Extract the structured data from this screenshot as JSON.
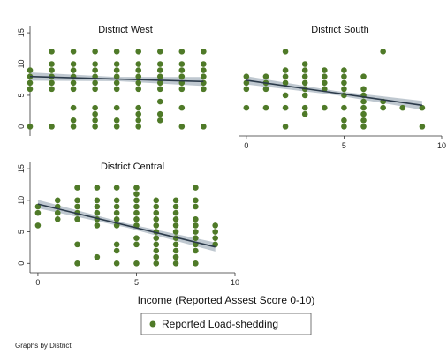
{
  "chart_data": {
    "type": "scatter",
    "xlabel": "Income (Reported Assest Score 0-10)",
    "legend": {
      "label": "Reported Load-shedding",
      "placement": "bottom-center"
    },
    "note": "Graphs by District",
    "colors": {
      "marker": "#4f7a28",
      "fit_line": "#2b3a4a",
      "ci_band": "#b4bec8"
    },
    "panels": [
      {
        "title": "District  West",
        "xlim": [
          0,
          8.8
        ],
        "ylim": [
          -1.5,
          16
        ],
        "yticks": [
          0,
          5,
          10,
          15
        ],
        "xticks": [],
        "fit": {
          "x": [
            0,
            8
          ],
          "y": [
            8.0,
            7.2
          ]
        },
        "points": [
          [
            0,
            0
          ],
          [
            0,
            6
          ],
          [
            0,
            7
          ],
          [
            0,
            8
          ],
          [
            0,
            9
          ],
          [
            1,
            0
          ],
          [
            1,
            6
          ],
          [
            1,
            7
          ],
          [
            1,
            8
          ],
          [
            1,
            9
          ],
          [
            1,
            10
          ],
          [
            1,
            12
          ],
          [
            2,
            0
          ],
          [
            2,
            1
          ],
          [
            2,
            3
          ],
          [
            2,
            6
          ],
          [
            2,
            7
          ],
          [
            2,
            8
          ],
          [
            2,
            9
          ],
          [
            2,
            10
          ],
          [
            2,
            12
          ],
          [
            3,
            0
          ],
          [
            3,
            1
          ],
          [
            3,
            2
          ],
          [
            3,
            3
          ],
          [
            3,
            6
          ],
          [
            3,
            7
          ],
          [
            3,
            8
          ],
          [
            3,
            9
          ],
          [
            3,
            10
          ],
          [
            3,
            12
          ],
          [
            4,
            0
          ],
          [
            4,
            1
          ],
          [
            4,
            3
          ],
          [
            4,
            6
          ],
          [
            4,
            7
          ],
          [
            4,
            8
          ],
          [
            4,
            9
          ],
          [
            4,
            10
          ],
          [
            4,
            12
          ],
          [
            5,
            0
          ],
          [
            5,
            1
          ],
          [
            5,
            2
          ],
          [
            5,
            3
          ],
          [
            5,
            6
          ],
          [
            5,
            7
          ],
          [
            5,
            8
          ],
          [
            5,
            9
          ],
          [
            5,
            10
          ],
          [
            5,
            12
          ],
          [
            6,
            1
          ],
          [
            6,
            2
          ],
          [
            6,
            4
          ],
          [
            6,
            6
          ],
          [
            6,
            7
          ],
          [
            6,
            8
          ],
          [
            6,
            9
          ],
          [
            6,
            10
          ],
          [
            6,
            12
          ],
          [
            7,
            0
          ],
          [
            7,
            3
          ],
          [
            7,
            6
          ],
          [
            7,
            7
          ],
          [
            7,
            8
          ],
          [
            7,
            9
          ],
          [
            7,
            10
          ],
          [
            7,
            12
          ],
          [
            8,
            0
          ],
          [
            8,
            6
          ],
          [
            8,
            7
          ],
          [
            8,
            8
          ],
          [
            8,
            9
          ],
          [
            8,
            10
          ],
          [
            8,
            12
          ]
        ]
      },
      {
        "title": "District South",
        "xlim": [
          -0.4,
          10
        ],
        "ylim": [
          -1.5,
          16
        ],
        "yticks": [],
        "xticks": [
          0,
          5,
          10
        ],
        "fit": {
          "x": [
            0,
            9
          ],
          "y": [
            7.4,
            3.4
          ]
        },
        "points": [
          [
            0,
            3
          ],
          [
            0,
            6
          ],
          [
            0,
            7
          ],
          [
            0,
            8
          ],
          [
            1,
            3
          ],
          [
            1,
            6
          ],
          [
            1,
            7
          ],
          [
            1,
            8
          ],
          [
            2,
            0
          ],
          [
            2,
            3
          ],
          [
            2,
            5
          ],
          [
            2,
            7
          ],
          [
            2,
            8
          ],
          [
            2,
            9
          ],
          [
            2,
            12
          ],
          [
            3,
            2
          ],
          [
            3,
            3
          ],
          [
            3,
            5
          ],
          [
            3,
            6
          ],
          [
            3,
            7
          ],
          [
            3,
            8
          ],
          [
            3,
            9
          ],
          [
            3,
            10
          ],
          [
            4,
            3
          ],
          [
            4,
            6
          ],
          [
            4,
            7
          ],
          [
            4,
            8
          ],
          [
            4,
            9
          ],
          [
            5,
            0
          ],
          [
            5,
            1
          ],
          [
            5,
            3
          ],
          [
            5,
            5
          ],
          [
            5,
            6
          ],
          [
            5,
            7
          ],
          [
            5,
            8
          ],
          [
            5,
            9
          ],
          [
            6,
            0
          ],
          [
            6,
            1
          ],
          [
            6,
            2
          ],
          [
            6,
            3
          ],
          [
            6,
            4
          ],
          [
            6,
            5
          ],
          [
            6,
            6
          ],
          [
            6,
            8
          ],
          [
            7,
            3
          ],
          [
            7,
            4
          ],
          [
            7,
            12
          ],
          [
            8,
            3
          ],
          [
            9,
            0
          ],
          [
            9,
            3
          ]
        ]
      },
      {
        "title": "District Central",
        "xlim": [
          -0.4,
          10
        ],
        "ylim": [
          -1.5,
          16
        ],
        "yticks": [
          0,
          5,
          10,
          15
        ],
        "xticks": [
          0,
          5,
          10
        ],
        "fit": {
          "x": [
            0,
            9
          ],
          "y": [
            9.4,
            2.6
          ]
        },
        "points": [
          [
            0,
            6
          ],
          [
            0,
            8
          ],
          [
            0,
            9
          ],
          [
            1,
            7
          ],
          [
            1,
            8
          ],
          [
            1,
            9
          ],
          [
            1,
            10
          ],
          [
            2,
            0
          ],
          [
            2,
            3
          ],
          [
            2,
            7
          ],
          [
            2,
            8
          ],
          [
            2,
            9
          ],
          [
            2,
            10
          ],
          [
            2,
            12
          ],
          [
            3,
            1
          ],
          [
            3,
            6
          ],
          [
            3,
            7
          ],
          [
            3,
            8
          ],
          [
            3,
            9
          ],
          [
            3,
            10
          ],
          [
            3,
            12
          ],
          [
            4,
            0
          ],
          [
            4,
            2
          ],
          [
            4,
            3
          ],
          [
            4,
            6
          ],
          [
            4,
            7
          ],
          [
            4,
            8
          ],
          [
            4,
            9
          ],
          [
            4,
            10
          ],
          [
            4,
            12
          ],
          [
            5,
            0
          ],
          [
            5,
            3
          ],
          [
            5,
            4
          ],
          [
            5,
            6
          ],
          [
            5,
            7
          ],
          [
            5,
            8
          ],
          [
            5,
            9
          ],
          [
            5,
            10
          ],
          [
            5,
            11
          ],
          [
            5,
            12
          ],
          [
            6,
            0
          ],
          [
            6,
            1
          ],
          [
            6,
            2
          ],
          [
            6,
            3
          ],
          [
            6,
            4
          ],
          [
            6,
            5
          ],
          [
            6,
            6
          ],
          [
            6,
            7
          ],
          [
            6,
            8
          ],
          [
            6,
            9
          ],
          [
            6,
            10
          ],
          [
            7,
            0
          ],
          [
            7,
            1
          ],
          [
            7,
            2
          ],
          [
            7,
            3
          ],
          [
            7,
            4
          ],
          [
            7,
            5
          ],
          [
            7,
            6
          ],
          [
            7,
            7
          ],
          [
            7,
            8
          ],
          [
            7,
            9
          ],
          [
            7,
            10
          ],
          [
            8,
            0
          ],
          [
            8,
            2
          ],
          [
            8,
            3
          ],
          [
            8,
            4
          ],
          [
            8,
            5
          ],
          [
            8,
            6
          ],
          [
            8,
            7
          ],
          [
            8,
            9
          ],
          [
            8,
            10
          ],
          [
            8,
            12
          ],
          [
            9,
            3
          ],
          [
            9,
            4
          ],
          [
            9,
            5
          ],
          [
            9,
            6
          ]
        ]
      }
    ]
  }
}
